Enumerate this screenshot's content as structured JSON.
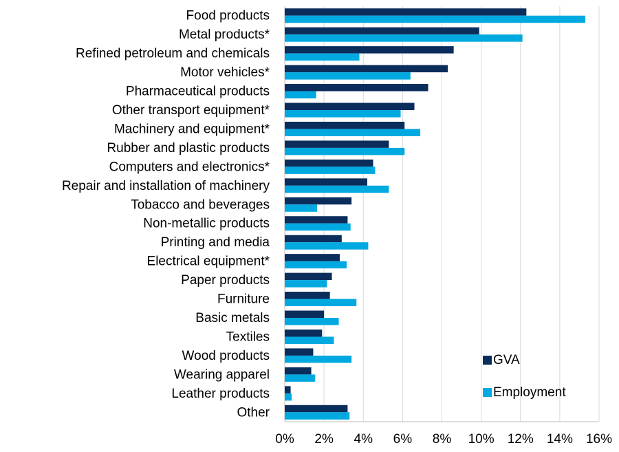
{
  "chart_data": {
    "type": "bar",
    "orientation": "horizontal",
    "title": "",
    "xlabel": "",
    "ylabel": "",
    "categories": [
      "Food products",
      "Metal products*",
      "Refined petroleum and chemicals",
      "Motor vehicles*",
      "Pharmaceutical products",
      "Other transport equipment*",
      "Machinery and equipment*",
      "Rubber and plastic products",
      "Computers and electronics*",
      "Repair and installation of machinery",
      "Tobacco and beverages",
      "Non-metallic products",
      "Printing and media",
      "Electrical equipment*",
      "Paper products",
      "Furniture",
      "Basic metals",
      "Textiles",
      "Wood products",
      "Wearing apparel",
      "Leather products",
      "Other"
    ],
    "series": [
      {
        "name": "GVA",
        "color": "#0b2d5c",
        "values": [
          12.3,
          9.9,
          8.6,
          8.3,
          7.3,
          6.6,
          6.1,
          5.3,
          4.5,
          4.2,
          3.4,
          3.2,
          2.9,
          2.8,
          2.4,
          2.3,
          2.0,
          1.9,
          1.45,
          1.35,
          0.3,
          3.2
        ]
      },
      {
        "name": "Employment",
        "color": "#00a9e0",
        "values": [
          15.3,
          12.1,
          3.8,
          6.4,
          1.6,
          5.9,
          6.9,
          6.1,
          4.6,
          5.3,
          1.65,
          3.35,
          4.25,
          3.15,
          2.15,
          3.65,
          2.75,
          2.5,
          3.4,
          1.55,
          0.35,
          3.3
        ]
      }
    ],
    "xlim": [
      0,
      16
    ],
    "xticks": [
      0,
      2,
      4,
      6,
      8,
      10,
      12,
      14,
      16
    ],
    "tick_suffix": "%",
    "grid": "vertical",
    "legend_position": "bottom-right"
  }
}
